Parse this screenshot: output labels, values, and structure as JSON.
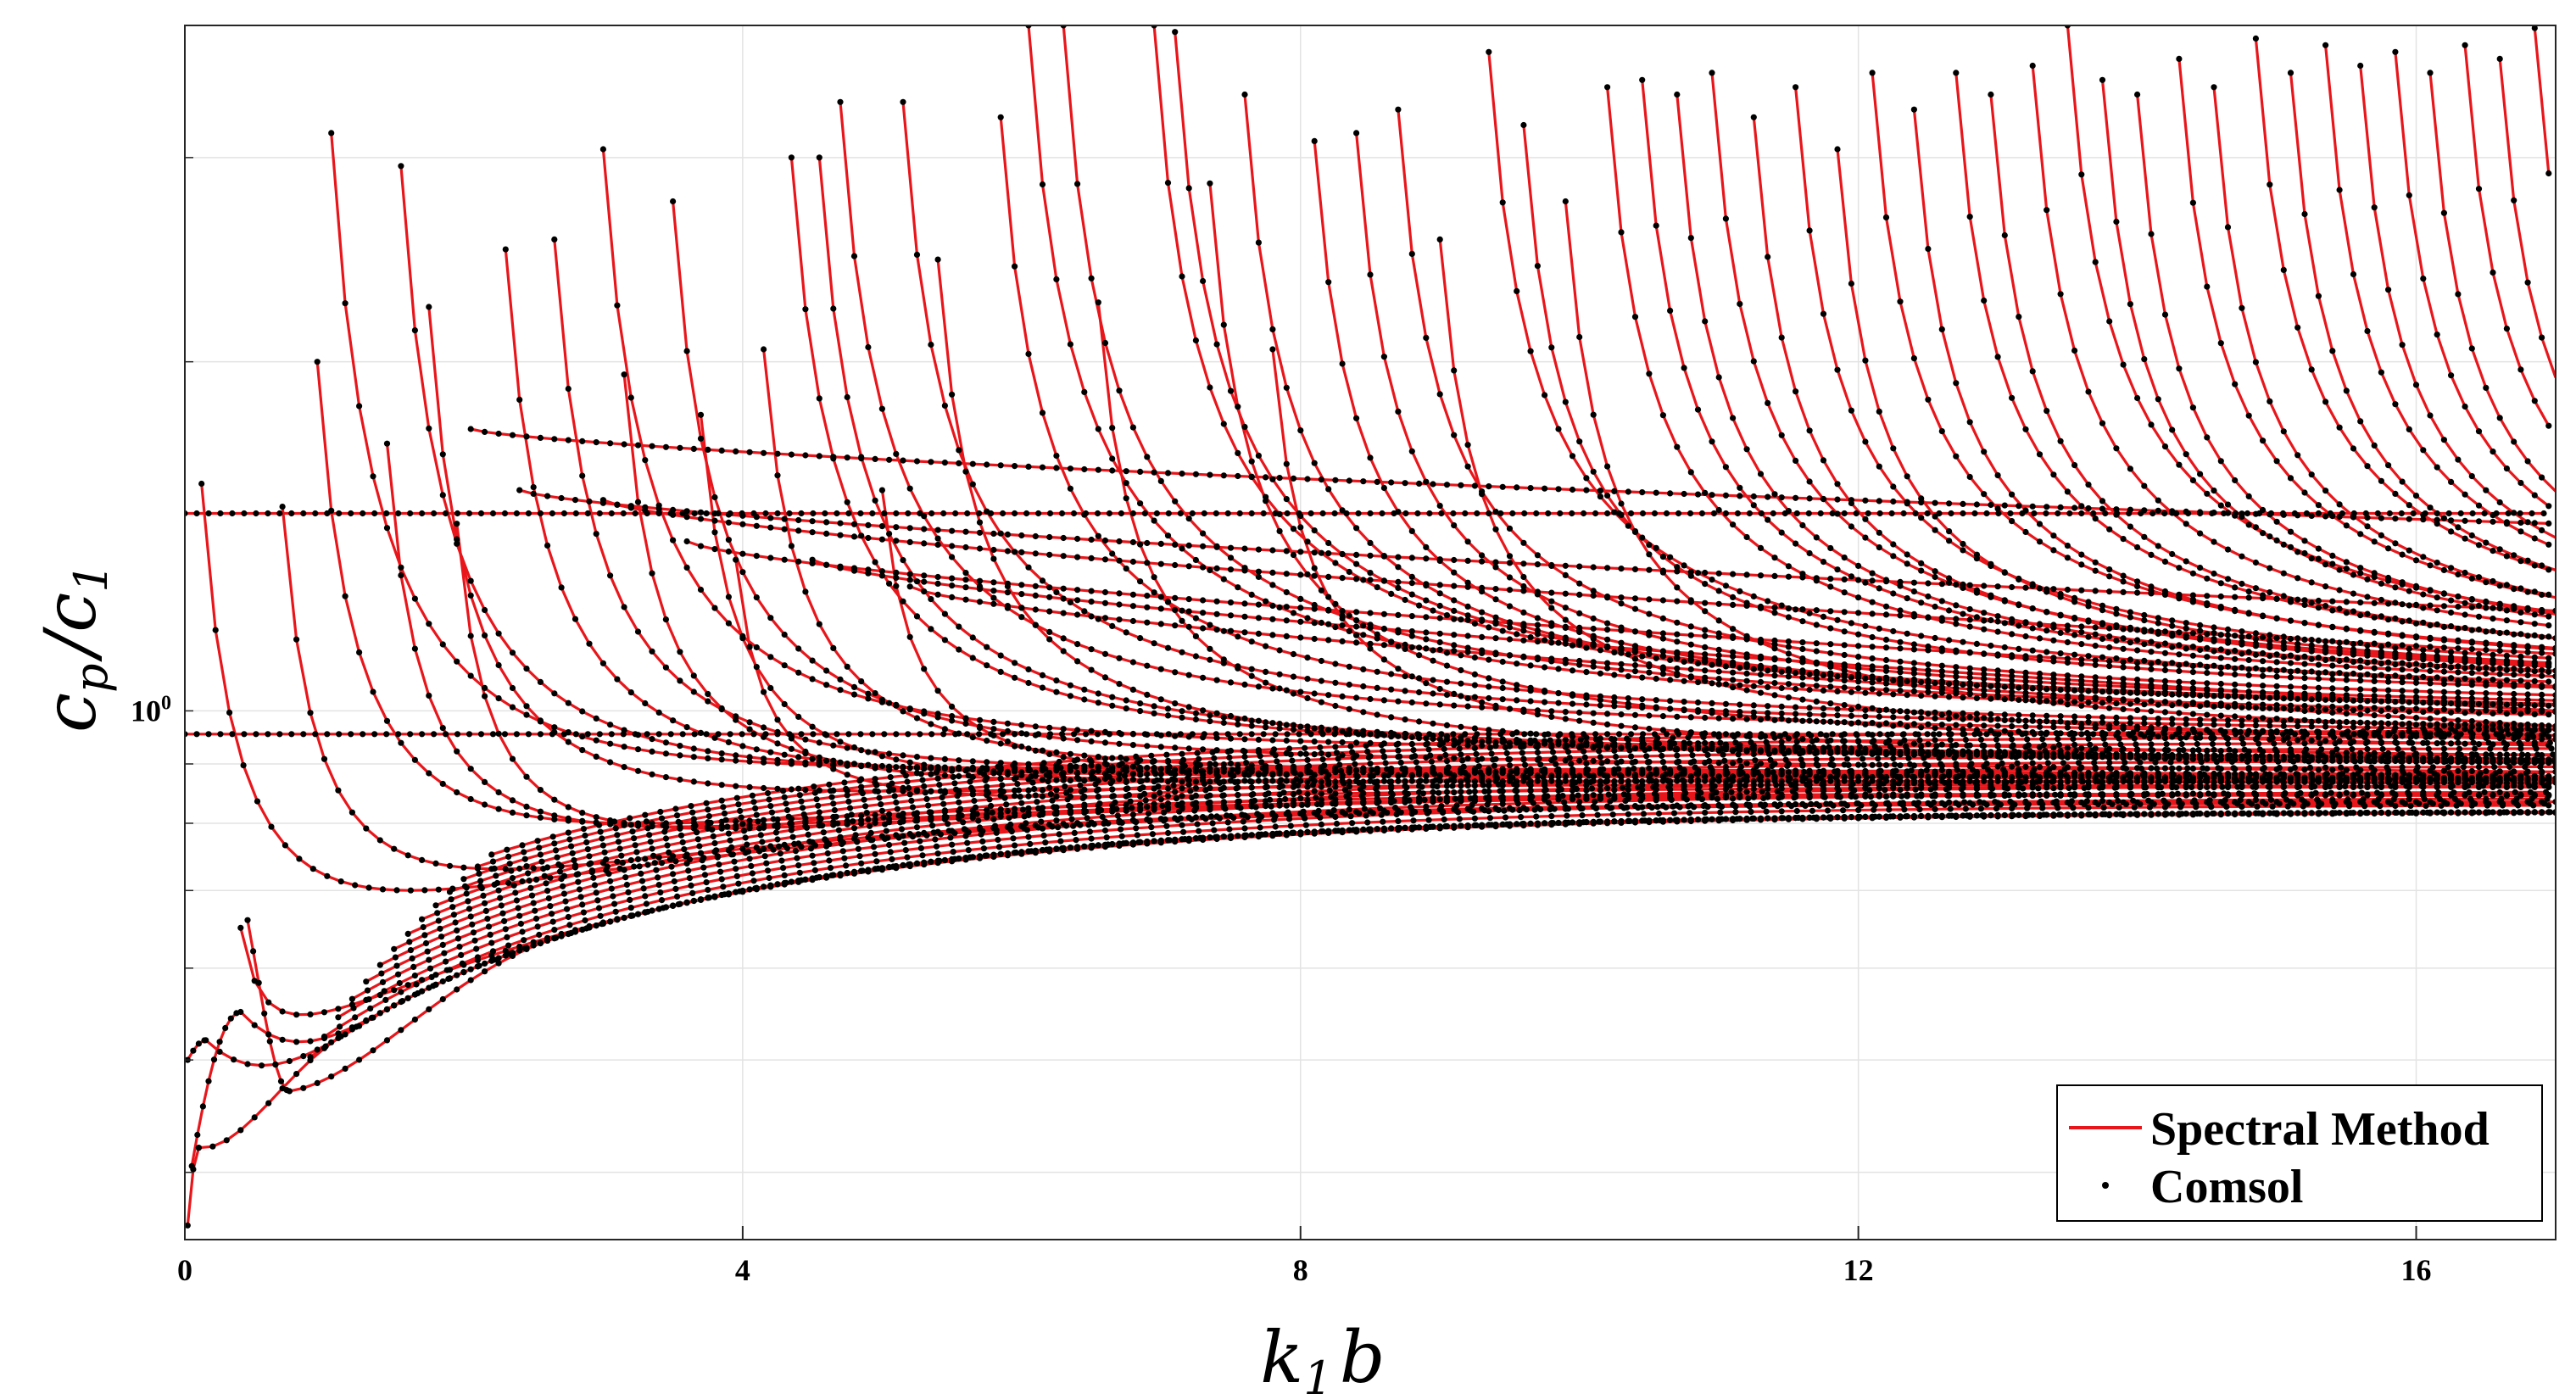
{
  "chart_data": {
    "type": "line",
    "title": "",
    "xlabel": "k_1 b",
    "ylabel": "c_p / c_1",
    "xlim": [
      0,
      17
    ],
    "ylim": [
      0.35,
      3.9
    ],
    "y_scale": "log",
    "grid": true,
    "x_ticks": [
      0,
      4,
      8,
      12,
      16
    ],
    "x_tick_labels": [
      "0",
      "4",
      "8",
      "12",
      "16"
    ],
    "y_ticks": [
      1
    ],
    "y_tick_labels": [
      "10^0"
    ],
    "legend": {
      "position": "bottom-right",
      "entries": [
        {
          "label": "Spectral Method",
          "style": "line",
          "color": "#e8161b"
        },
        {
          "label": "Comsol",
          "style": "marker",
          "color": "#000000"
        }
      ]
    },
    "colors": {
      "line": "#e8161b",
      "marker": "#000000",
      "grid": "#e3e3e3"
    },
    "families": {
      "bulk_asymptotes": [
        1.48,
        0.955
      ],
      "lower_limit": 0.82,
      "lower_modes": [
        {
          "start": [
            0.02,
            0.5
          ],
          "peak": [
            0.15,
            0.52
          ],
          "join": 0.95
        },
        {
          "start": [
            0.05,
            0.405
          ],
          "peak": [
            0.4,
            0.55
          ],
          "join": 0.7
        },
        {
          "start": [
            0.02,
            0.36
          ],
          "peak": [
            0.1,
            0.42
          ],
          "join": 0.5
        },
        {
          "start": [
            0.45,
            0.66
          ],
          "peak": [
            0.75,
            0.47
          ],
          "join": 1.4
        }
      ],
      "cutoff_branches": [
        [
          0.12,
          1.57
        ],
        [
          0.4,
          0.65
        ],
        [
          0.7,
          1.5
        ],
        [
          0.95,
          2.0
        ],
        [
          1.05,
          3.15
        ],
        [
          1.45,
          1.7
        ],
        [
          1.55,
          2.95
        ],
        [
          1.75,
          2.23
        ],
        [
          1.95,
          1.45
        ],
        [
          2.3,
          2.5
        ],
        [
          2.65,
          2.55
        ],
        [
          3.0,
          3.05
        ],
        [
          3.15,
          1.95
        ],
        [
          3.5,
          2.75
        ],
        [
          3.7,
          1.8
        ],
        [
          3.95,
          1.35
        ],
        [
          4.15,
          2.05
        ],
        [
          4.35,
          3.0
        ],
        [
          4.55,
          3.0
        ],
        [
          4.7,
          3.35
        ],
        [
          5.0,
          1.55
        ],
        [
          5.15,
          3.35
        ],
        [
          5.4,
          2.45
        ],
        [
          5.85,
          3.25
        ],
        [
          6.05,
          3.9
        ],
        [
          6.3,
          3.9
        ],
        [
          6.55,
          2.25
        ],
        [
          6.95,
          3.9
        ],
        [
          7.1,
          3.85
        ],
        [
          7.35,
          2.85
        ],
        [
          7.6,
          3.4
        ],
        [
          7.8,
          2.05
        ],
        [
          8.1,
          3.1
        ],
        [
          8.4,
          3.15
        ],
        [
          8.7,
          3.3
        ],
        [
          9.0,
          2.55
        ],
        [
          9.35,
          3.7
        ],
        [
          9.6,
          3.2
        ],
        [
          9.9,
          2.75
        ],
        [
          10.2,
          3.45
        ],
        [
          10.45,
          3.5
        ],
        [
          10.7,
          3.4
        ],
        [
          10.95,
          3.55
        ],
        [
          11.25,
          3.25
        ],
        [
          11.55,
          3.45
        ],
        [
          11.85,
          3.05
        ],
        [
          12.1,
          3.55
        ],
        [
          12.4,
          3.3
        ],
        [
          12.7,
          3.55
        ],
        [
          12.95,
          3.4
        ],
        [
          13.25,
          3.6
        ],
        [
          13.5,
          3.9
        ],
        [
          13.75,
          3.5
        ],
        [
          14.0,
          3.4
        ],
        [
          14.3,
          3.65
        ],
        [
          14.55,
          3.45
        ],
        [
          14.85,
          3.8
        ],
        [
          15.1,
          3.55
        ],
        [
          15.35,
          3.75
        ],
        [
          15.6,
          3.6
        ],
        [
          15.85,
          3.7
        ],
        [
          16.1,
          3.55
        ],
        [
          16.35,
          3.75
        ],
        [
          16.6,
          3.65
        ],
        [
          16.85,
          3.88
        ]
      ],
      "plateau_curves": [
        {
          "kstart": 2.05,
          "yhigh": 1.75,
          "ylow": 1.45
        },
        {
          "kstart": 2.4,
          "yhigh": 1.55,
          "ylow": 1.22
        },
        {
          "kstart": 3.0,
          "yhigh": 1.52,
          "ylow": 1.12
        },
        {
          "kstart": 3.6,
          "yhigh": 1.4,
          "ylow": 1.05
        },
        {
          "kstart": 4.5,
          "yhigh": 1.35,
          "ylow": 1.0
        },
        {
          "kstart": 5.2,
          "yhigh": 1.28,
          "ylow": 0.97
        }
      ]
    }
  }
}
